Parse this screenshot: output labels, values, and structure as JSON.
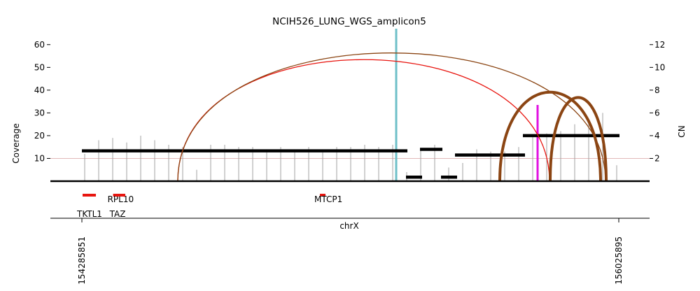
{
  "chart_data": {
    "type": "amplicon",
    "title": "NCIH526_LUNG_WGS_amplicon5",
    "xlabel": "chrX",
    "ylabel": "Coverage",
    "y2label": "CN",
    "xlim": [
      154183800,
      156125700
    ],
    "ylim": [
      0,
      67
    ],
    "y2lim": [
      0,
      13.4
    ],
    "xticks": [
      154285851,
      156025895
    ],
    "yticks": [
      10,
      20,
      30,
      40,
      50,
      60
    ],
    "y2ticks": [
      2,
      4,
      6,
      8,
      10,
      12
    ],
    "cn_reference": 2,
    "cn_reference_color": "#d9a0a0",
    "coverage": {
      "color": "#a0a0a0",
      "x": [
        154294925,
        154340297,
        154385669,
        154431041,
        154476413,
        154521785,
        154567157,
        154612529,
        154657901,
        154703273,
        154748645,
        154794017,
        154839389,
        154884761,
        154930133,
        154975505,
        155020877,
        155066249,
        155111621,
        155156993,
        155202365,
        155247737,
        155293109,
        155338481,
        155383853,
        155429225,
        155474597,
        155519969,
        155565341,
        155610713,
        155656085,
        155701457,
        155746829,
        155792201,
        155837573,
        155882945,
        155928317,
        155973689,
        156019061
      ],
      "values": [
        12,
        18,
        19,
        17,
        20,
        18,
        16,
        15,
        5,
        16,
        16,
        15,
        15,
        14,
        15,
        14,
        15,
        14,
        15,
        15,
        16,
        15,
        16,
        4,
        14,
        16,
        6,
        8,
        14,
        13,
        13,
        15,
        20,
        21,
        22,
        25,
        27,
        30,
        7
      ]
    },
    "segments": {
      "color": "#000000",
      "starts": [
        154285851,
        155336213,
        155381585,
        155449643,
        155495015,
        155715069
      ],
      "ends": [
        155340750,
        155388391,
        155454180,
        155501821,
        155721875,
        156028136
      ],
      "values": [
        2.67,
        0.35,
        2.8,
        0.35,
        2.3,
        4.0
      ]
    },
    "breakpoints": {
      "starts": [
        154596649,
        154596649,
        155640205,
        155803544
      ],
      "ends": [
        155801276,
        155982764,
        155966884,
        155985032
      ],
      "colors": [
        "#e8150f",
        "#8b4513",
        "#8b4513",
        "#8b4513"
      ],
      "widths": [
        1.3,
        1.3,
        4,
        4
      ]
    },
    "markers": {
      "x": [
        155304452,
        155762710
      ],
      "values": [
        67,
        33.5
      ],
      "colors": [
        "#6fc0c8",
        "#e010e0"
      ]
    },
    "genes": {
      "color": "#e8150f",
      "names": [
        "TKTL1",
        "RPL10",
        "TAZ",
        "MTCP1"
      ],
      "starts": [
        154288120,
        154387000,
        154394000,
        155057175
      ],
      "ends": [
        154331223,
        154412000,
        154426504,
        155075324
      ]
    }
  }
}
